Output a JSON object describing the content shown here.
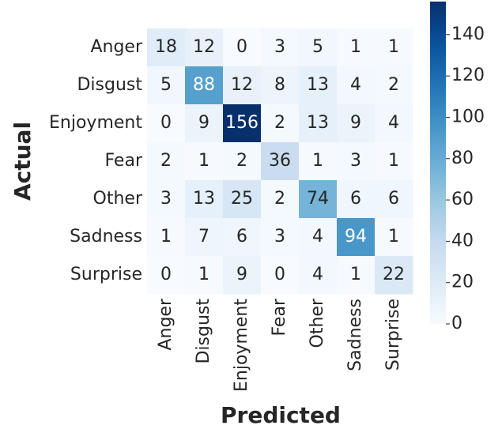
{
  "chart_data": {
    "type": "heatmap",
    "xlabel": "Predicted",
    "ylabel": "Actual",
    "x_categories": [
      "Anger",
      "Disgust",
      "Enjoyment",
      "Fear",
      "Other",
      "Sadness",
      "Surprise"
    ],
    "y_categories": [
      "Anger",
      "Disgust",
      "Enjoyment",
      "Fear",
      "Other",
      "Sadness",
      "Surprise"
    ],
    "values": [
      [
        18,
        12,
        0,
        3,
        5,
        1,
        1
      ],
      [
        5,
        88,
        12,
        8,
        13,
        4,
        2
      ],
      [
        0,
        9,
        156,
        2,
        13,
        9,
        4
      ],
      [
        2,
        1,
        2,
        36,
        1,
        3,
        1
      ],
      [
        3,
        13,
        25,
        2,
        74,
        6,
        6
      ],
      [
        1,
        7,
        6,
        3,
        4,
        94,
        1
      ],
      [
        0,
        1,
        9,
        0,
        4,
        1,
        22
      ]
    ],
    "colormap": "Blues",
    "zlim": [
      0,
      156
    ],
    "zticks": [
      0,
      20,
      40,
      60,
      80,
      100,
      120,
      140
    ]
  }
}
